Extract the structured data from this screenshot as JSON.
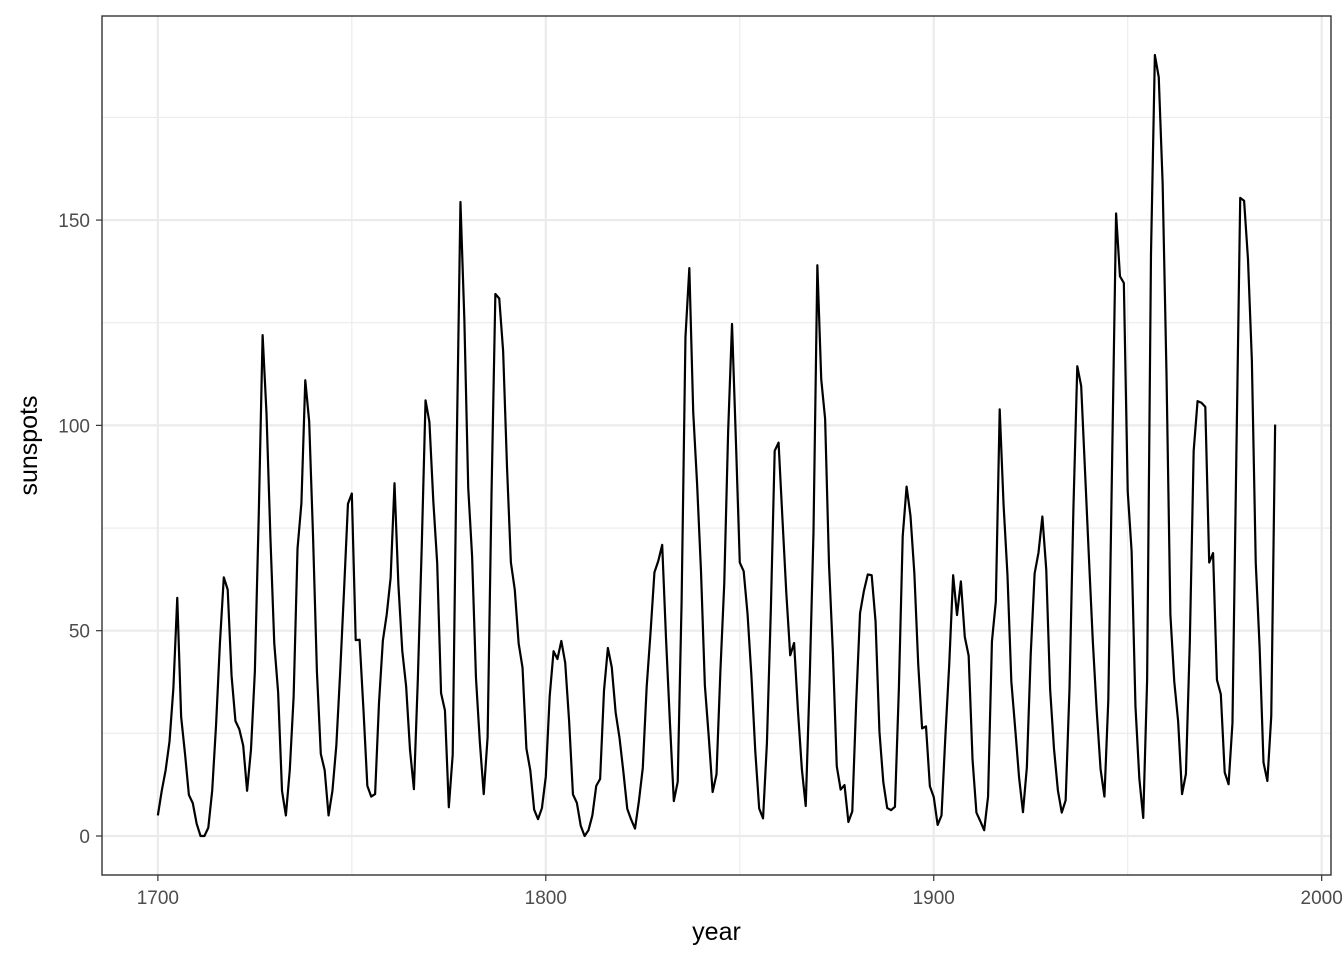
{
  "chart_data": {
    "type": "line",
    "title": "",
    "xlabel": "year",
    "ylabel": "sunspots",
    "xlim": [
      1685.6,
      2002.4
    ],
    "ylim": [
      -9.5,
      199.7
    ],
    "x_ticks": [
      1700,
      1800,
      1900,
      2000
    ],
    "x_tick_labels": [
      "1700",
      "1800",
      "1900",
      "2000"
    ],
    "x_minor_ticks": [
      1750,
      1850,
      1950
    ],
    "y_ticks": [
      0,
      50,
      100,
      150
    ],
    "y_tick_labels": [
      "0",
      "50",
      "100",
      "150"
    ],
    "y_minor_ticks": [
      25,
      75,
      125,
      175
    ],
    "grid": true,
    "legend": "none",
    "colors": {
      "line": "#000000",
      "grid": "#ebebeb",
      "panel_border": "#333333"
    },
    "series": [
      {
        "x_start": 1700,
        "x_step": 1,
        "values": [
          5.0,
          11.0,
          16.0,
          23.0,
          36.0,
          58.0,
          29.0,
          20.0,
          10.0,
          8.0,
          3.0,
          0.0,
          0.0,
          2.0,
          11.0,
          27.0,
          47.0,
          63.0,
          60.0,
          39.0,
          28.0,
          26.0,
          22.0,
          11.0,
          21.0,
          40.0,
          78.0,
          122.0,
          103.0,
          73.0,
          47.0,
          35.0,
          11.0,
          5.0,
          16.0,
          34.0,
          70.0,
          81.0,
          111.0,
          101.0,
          73.0,
          40.0,
          20.0,
          16.0,
          5.0,
          11.0,
          22.0,
          40.0,
          60.0,
          80.9,
          83.4,
          47.7,
          47.8,
          30.7,
          12.2,
          9.6,
          10.2,
          32.4,
          47.6,
          54.0,
          62.9,
          85.9,
          61.2,
          45.1,
          36.4,
          20.9,
          11.4,
          37.8,
          69.8,
          106.1,
          100.8,
          81.6,
          66.5,
          34.8,
          30.6,
          7.0,
          19.8,
          92.5,
          154.4,
          125.9,
          84.8,
          68.1,
          38.5,
          22.8,
          10.2,
          24.1,
          82.9,
          132.0,
          130.9,
          118.1,
          89.9,
          66.6,
          60.0,
          46.9,
          41.0,
          21.3,
          16.0,
          6.4,
          4.1,
          6.8,
          14.5,
          34.0,
          45.0,
          43.1,
          47.5,
          42.2,
          28.1,
          10.1,
          8.1,
          2.5,
          0.0,
          1.4,
          5.0,
          12.2,
          13.9,
          35.4,
          45.8,
          41.1,
          30.1,
          23.9,
          15.6,
          6.6,
          4.0,
          1.8,
          8.5,
          16.6,
          36.3,
          49.6,
          64.2,
          67.0,
          70.9,
          47.8,
          27.5,
          8.5,
          13.2,
          56.9,
          121.5,
          138.3,
          103.2,
          85.7,
          64.6,
          36.7,
          24.2,
          10.7,
          15.0,
          40.1,
          61.5,
          98.5,
          124.7,
          96.3,
          66.6,
          64.5,
          54.1,
          39.0,
          20.6,
          6.7,
          4.3,
          22.7,
          54.8,
          93.8,
          95.8,
          77.2,
          59.1,
          44.0,
          47.0,
          30.5,
          16.3,
          7.3,
          37.6,
          74.0,
          139.0,
          111.2,
          101.6,
          66.2,
          44.7,
          17.0,
          11.3,
          12.4,
          3.4,
          6.0,
          32.3,
          54.3,
          59.7,
          63.7,
          63.5,
          52.2,
          25.4,
          13.1,
          6.8,
          6.3,
          7.1,
          35.6,
          73.0,
          85.1,
          78.0,
          64.0,
          41.8,
          26.2,
          26.7,
          12.1,
          9.5,
          2.7,
          5.0,
          24.4,
          42.0,
          63.5,
          53.8,
          62.0,
          48.5,
          43.9,
          18.6,
          5.7,
          3.6,
          1.4,
          9.6,
          47.4,
          57.1,
          103.9,
          80.6,
          63.6,
          37.6,
          26.1,
          14.2,
          5.8,
          16.7,
          44.3,
          63.9,
          69.0,
          77.8,
          64.9,
          35.7,
          21.2,
          11.1,
          5.7,
          8.7,
          36.1,
          79.7,
          114.4,
          109.6,
          88.8,
          67.8,
          47.5,
          30.6,
          16.3,
          9.6,
          33.2,
          92.6,
          151.6,
          136.3,
          134.7,
          83.9,
          69.4,
          31.5,
          13.9,
          4.4,
          38.0,
          141.7,
          190.2,
          184.8,
          159.0,
          112.3,
          53.9,
          37.6,
          27.9,
          10.2,
          15.1,
          47.0,
          93.8,
          105.9,
          105.5,
          104.5,
          66.6,
          68.9,
          38.0,
          34.5,
          15.5,
          12.6,
          27.5,
          92.5,
          155.4,
          154.7,
          140.5,
          115.9,
          66.6,
          45.9,
          17.9,
          13.4,
          29.2,
          100.2
        ]
      }
    ]
  }
}
